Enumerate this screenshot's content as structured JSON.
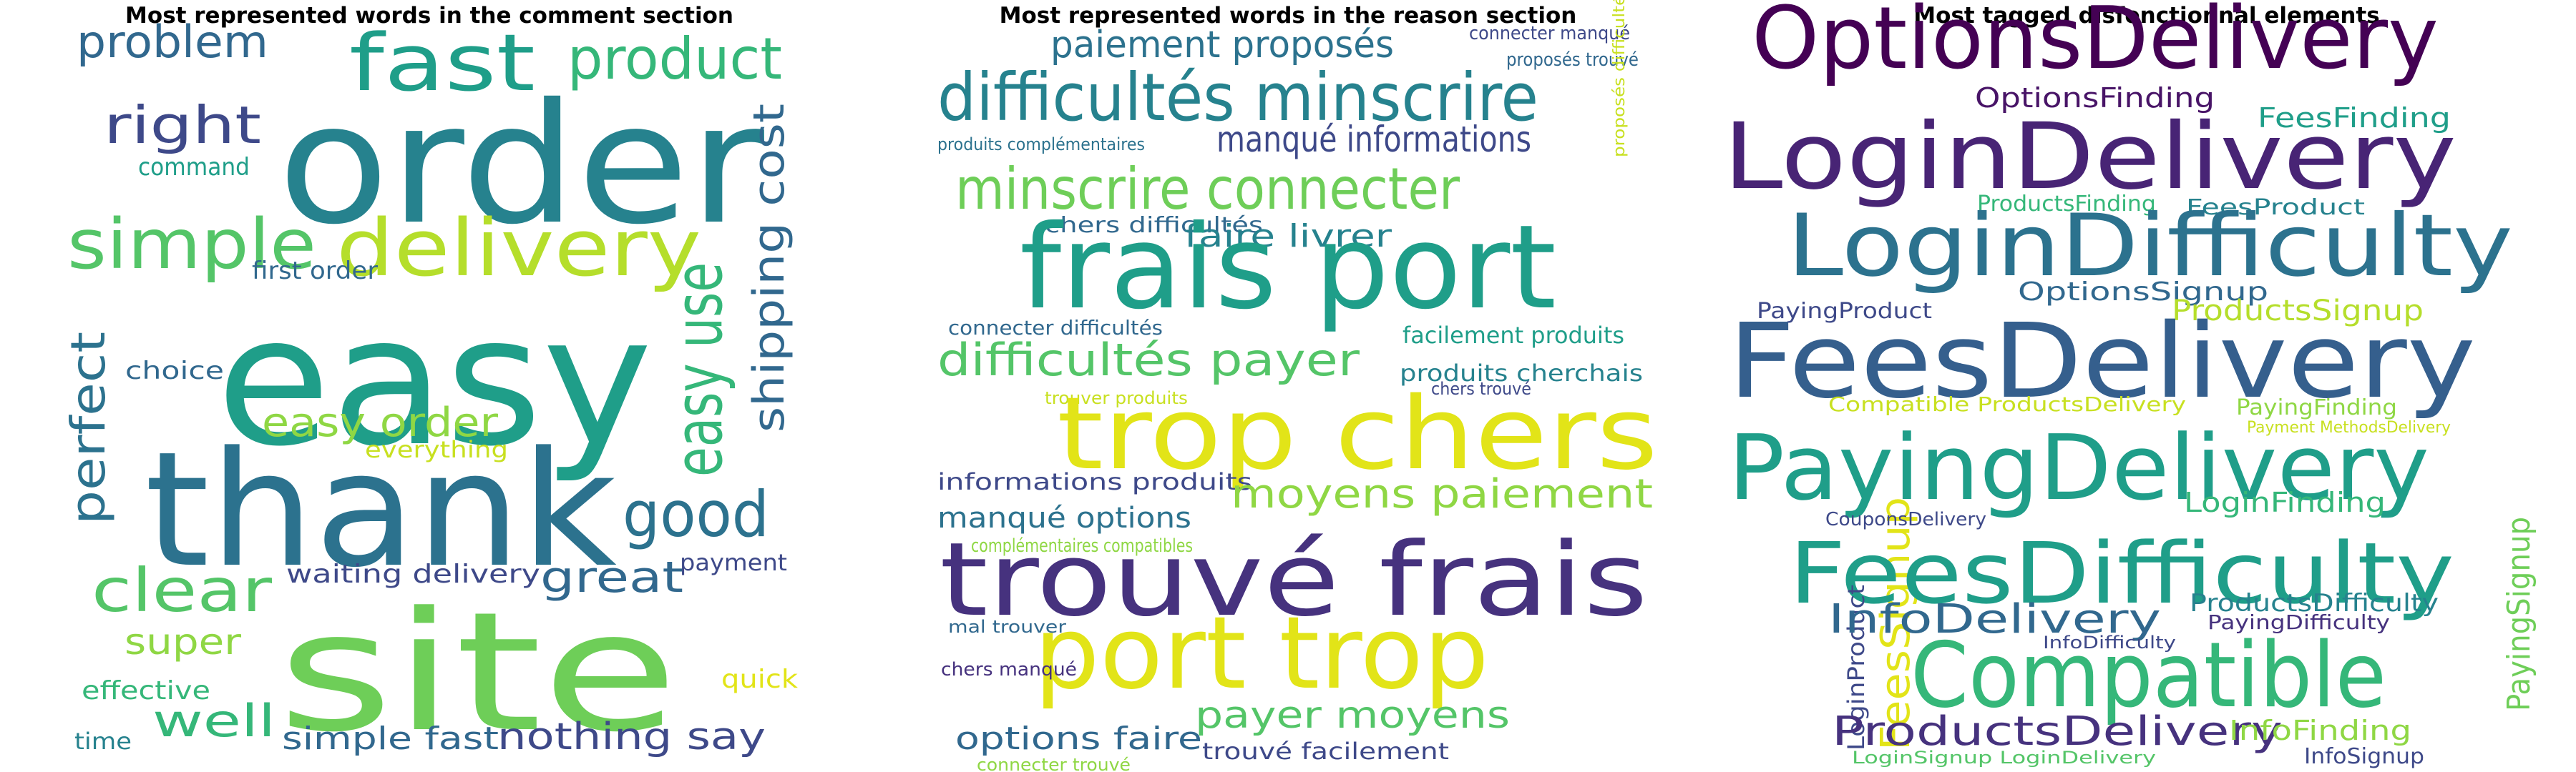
{
  "panels": [
    {
      "title": "Most represented words in the comment section",
      "words": [
        {
          "text": "easy",
          "color": "#1f9e89"
        },
        {
          "text": "order",
          "color": "#26828e"
        },
        {
          "text": "thank",
          "color": "#2c728e"
        },
        {
          "text": "site",
          "color": "#6ece58"
        },
        {
          "text": "fast",
          "color": "#1f9e89"
        },
        {
          "text": "product",
          "color": "#35b779"
        },
        {
          "text": "delivery",
          "color": "#b5de2b"
        },
        {
          "text": "simple",
          "color": "#54c568"
        },
        {
          "text": "right",
          "color": "#3e4989"
        },
        {
          "text": "problem",
          "color": "#31688e"
        },
        {
          "text": "command",
          "color": "#1f9e89"
        },
        {
          "text": "easy use",
          "color": "#35b779"
        },
        {
          "text": "shipping cost",
          "color": "#31688e"
        },
        {
          "text": "perfect",
          "color": "#2c728e"
        },
        {
          "text": "good",
          "color": "#2c728e"
        },
        {
          "text": "clear",
          "color": "#54c568"
        },
        {
          "text": "great",
          "color": "#31688e"
        },
        {
          "text": "easy order",
          "color": "#8fd744"
        },
        {
          "text": "first order",
          "color": "#31688e"
        },
        {
          "text": "choice",
          "color": "#31688e"
        },
        {
          "text": "everything",
          "color": "#c8e020"
        },
        {
          "text": "waiting delivery",
          "color": "#3e4989"
        },
        {
          "text": "payment",
          "color": "#3e4989"
        },
        {
          "text": "super",
          "color": "#8fd744"
        },
        {
          "text": "effective",
          "color": "#35b779"
        },
        {
          "text": "well",
          "color": "#35b779"
        },
        {
          "text": "time",
          "color": "#26828e"
        },
        {
          "text": "simple fast",
          "color": "#31688e"
        },
        {
          "text": "nothing say",
          "color": "#3e4989"
        },
        {
          "text": "quick",
          "color": "#e2e418"
        }
      ]
    },
    {
      "title": "Most represented words in the reason section",
      "words": [
        {
          "text": "paiement proposés",
          "color": "#2c728e"
        },
        {
          "text": "connecter manqué",
          "color": "#3e4989"
        },
        {
          "text": "proposés trouvé",
          "color": "#31688e"
        },
        {
          "text": "difficultés minscrire",
          "color": "#26828e"
        },
        {
          "text": "produits complémentaires",
          "color": "#2c728e"
        },
        {
          "text": "manqué informations",
          "color": "#3e4989"
        },
        {
          "text": "minscrire connecter",
          "color": "#6ece58"
        },
        {
          "text": "proposés difficultés",
          "color": "#c8e020"
        },
        {
          "text": "chers difficultés",
          "color": "#31688e"
        },
        {
          "text": "faire livrer",
          "color": "#26828e"
        },
        {
          "text": "frais port",
          "color": "#1f9e89"
        },
        {
          "text": "connecter difficultés",
          "color": "#31688e"
        },
        {
          "text": "facilement produits",
          "color": "#1f9e89"
        },
        {
          "text": "difficultés payer",
          "color": "#54c568"
        },
        {
          "text": "produits cherchais",
          "color": "#26828e"
        },
        {
          "text": "chers trouvé",
          "color": "#3e4989"
        },
        {
          "text": "trouver produits",
          "color": "#c8e020"
        },
        {
          "text": "trop chers",
          "color": "#e2e418"
        },
        {
          "text": "informations produits",
          "color": "#3e4989"
        },
        {
          "text": "moyens paiement",
          "color": "#8fd744"
        },
        {
          "text": "manqué options",
          "color": "#2c728e"
        },
        {
          "text": "complémentaires compatibles",
          "color": "#8fd744"
        },
        {
          "text": "trouvé frais",
          "color": "#46327e"
        },
        {
          "text": "mal trouver",
          "color": "#31688e"
        },
        {
          "text": "port trop",
          "color": "#e2e418"
        },
        {
          "text": "chers manqué",
          "color": "#46327e"
        },
        {
          "text": "options faire",
          "color": "#31688e"
        },
        {
          "text": "payer moyens",
          "color": "#54c568"
        },
        {
          "text": "connecter trouvé",
          "color": "#8fd744"
        },
        {
          "text": "trouvé facilement",
          "color": "#3e4989"
        }
      ]
    },
    {
      "title": "Most tagged disfonctionnal elements",
      "words": [
        {
          "text": "OptionsDelivery",
          "color": "#440154"
        },
        {
          "text": "OptionsFinding",
          "color": "#481467"
        },
        {
          "text": "FeesFinding",
          "color": "#1f9e89"
        },
        {
          "text": "LoginDelivery",
          "color": "#482475"
        },
        {
          "text": "ProductsFinding",
          "color": "#35b779"
        },
        {
          "text": "FeesProduct",
          "color": "#26828e"
        },
        {
          "text": "LoginDifficulty",
          "color": "#2c728e"
        },
        {
          "text": "OptionsSignup",
          "color": "#31688e"
        },
        {
          "text": "PayingProduct",
          "color": "#3e4989"
        },
        {
          "text": "ProductsSignup",
          "color": "#b5de2b"
        },
        {
          "text": "FeesDelivery",
          "color": "#355f8d"
        },
        {
          "text": "Compatible ProductsDelivery",
          "color": "#c8e020"
        },
        {
          "text": "PayingFinding",
          "color": "#8fd744"
        },
        {
          "text": "Payment MethodsDelivery",
          "color": "#c8e020"
        },
        {
          "text": "PayingDelivery",
          "color": "#1f9e89"
        },
        {
          "text": "LoginFinding",
          "color": "#35b779"
        },
        {
          "text": "FeesSignup",
          "color": "#e2e418"
        },
        {
          "text": "CouponsDelivery",
          "color": "#3e4989"
        },
        {
          "text": "FeesDifficulty",
          "color": "#1f9e89"
        },
        {
          "text": "PayingSignup",
          "color": "#6ece58"
        },
        {
          "text": "LoginProduct",
          "color": "#3e4989"
        },
        {
          "text": "InfoDelivery",
          "color": "#31688e"
        },
        {
          "text": "ProductsDifficulty",
          "color": "#26828e"
        },
        {
          "text": "PayingDifficulty",
          "color": "#46327e"
        },
        {
          "text": "InfoDifficulty",
          "color": "#3e4989"
        },
        {
          "text": "Compatible",
          "color": "#35b779"
        },
        {
          "text": "ProductsDelivery",
          "color": "#46327e"
        },
        {
          "text": "InfoFinding",
          "color": "#8fd744"
        },
        {
          "text": "LoginSignup LoginDelivery",
          "color": "#54c568"
        },
        {
          "text": "InfoSignup",
          "color": "#3e4989"
        }
      ]
    }
  ]
}
